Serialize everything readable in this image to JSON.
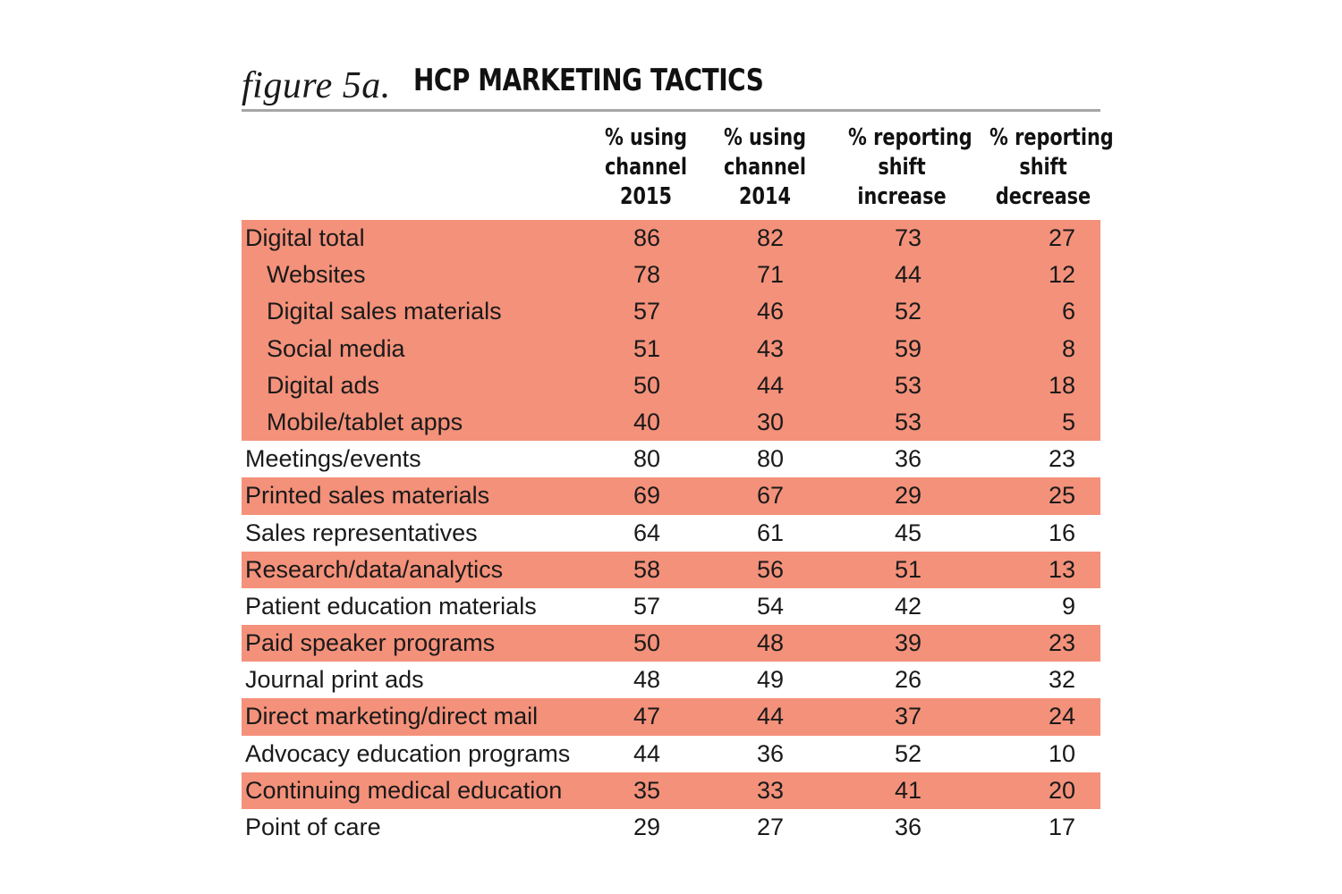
{
  "figure": {
    "number": "figure 5a.",
    "title": "HCP MARKETING TACTICS"
  },
  "colors": {
    "highlight": "#f4917a",
    "rule": "#a6a6a6",
    "text": "#1a1a1a"
  },
  "chart_data": {
    "type": "table",
    "title": "HCP MARKETING TACTICS",
    "columns": [
      [
        "% using",
        "channel",
        "2015"
      ],
      [
        "% using",
        "channel",
        "2014"
      ],
      [
        "% reporting",
        "shift",
        "increase"
      ],
      [
        "% reporting",
        "shift",
        "decrease"
      ]
    ],
    "rows": [
      {
        "label": "Digital total",
        "indent": false,
        "highlight": true,
        "values": [
          "86",
          "82",
          "73",
          "27"
        ]
      },
      {
        "label": "Websites",
        "indent": true,
        "highlight": true,
        "values": [
          "78",
          "71",
          "44",
          "12"
        ]
      },
      {
        "label": "Digital sales materials",
        "indent": true,
        "highlight": true,
        "values": [
          "57",
          "46",
          "52",
          "6"
        ]
      },
      {
        "label": "Social media",
        "indent": true,
        "highlight": true,
        "values": [
          "51",
          "43",
          "59",
          "8"
        ]
      },
      {
        "label": "Digital ads",
        "indent": true,
        "highlight": true,
        "values": [
          "50",
          "44",
          "53",
          "18"
        ]
      },
      {
        "label": "Mobile/tablet apps",
        "indent": true,
        "highlight": true,
        "values": [
          "40",
          "30",
          "53",
          "5"
        ]
      },
      {
        "label": "Meetings/events",
        "indent": false,
        "highlight": false,
        "values": [
          "80",
          "80",
          "36",
          "23"
        ]
      },
      {
        "label": "Printed sales materials",
        "indent": false,
        "highlight": true,
        "values": [
          "69",
          "67",
          "29",
          "25"
        ]
      },
      {
        "label": "Sales representatives",
        "indent": false,
        "highlight": false,
        "values": [
          "64",
          "61",
          "45",
          "16"
        ]
      },
      {
        "label": "Research/data/analytics",
        "indent": false,
        "highlight": true,
        "values": [
          "58",
          "56",
          "51",
          "13"
        ]
      },
      {
        "label": "Patient education materials",
        "indent": false,
        "highlight": false,
        "values": [
          "57",
          "54",
          "42",
          "9"
        ]
      },
      {
        "label": "Paid speaker programs",
        "indent": false,
        "highlight": true,
        "values": [
          "50",
          "48",
          "39",
          "23"
        ]
      },
      {
        "label": "Journal print ads",
        "indent": false,
        "highlight": false,
        "values": [
          "48",
          "49",
          "26",
          "32"
        ]
      },
      {
        "label": "Direct marketing/direct mail",
        "indent": false,
        "highlight": true,
        "values": [
          "47",
          "44",
          "37",
          "24"
        ]
      },
      {
        "label": "Advocacy education programs",
        "indent": false,
        "highlight": false,
        "values": [
          "44",
          "36",
          "52",
          "10"
        ]
      },
      {
        "label": "Continuing medical education",
        "indent": false,
        "highlight": true,
        "values": [
          "35",
          "33",
          "41",
          "20"
        ]
      },
      {
        "label": "Point of care",
        "indent": false,
        "highlight": false,
        "values": [
          "29",
          "27",
          "36",
          "17"
        ]
      }
    ]
  }
}
